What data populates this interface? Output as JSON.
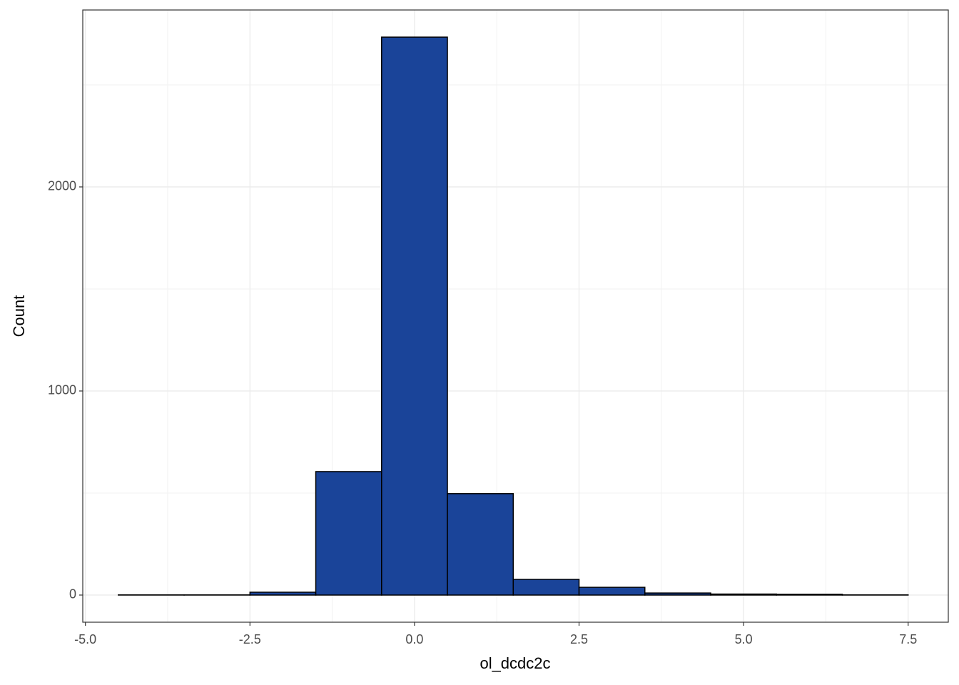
{
  "chart_data": {
    "type": "histogram",
    "x_label": "ol_dcdc2c",
    "y_label": "Count",
    "bins": [
      -4.5,
      -3.5,
      -2.5,
      -1.5,
      -0.5,
      0.5,
      1.5,
      2.5,
      3.5,
      4.5,
      5.5,
      6.5,
      7.5
    ],
    "values": [
      1,
      1,
      14,
      605,
      2734,
      497,
      77,
      38,
      10,
      5,
      4,
      1
    ],
    "color": "#1a4499",
    "edge_color": "#000000",
    "xlim": [
      -5.04,
      8.11
    ],
    "ylim": [
      -133,
      2867
    ],
    "xticks": [
      {
        "value": -5,
        "label": "-5.0"
      },
      {
        "value": -2.5,
        "label": "-2.5"
      },
      {
        "value": 0,
        "label": "0.0"
      },
      {
        "value": 2.5,
        "label": "2.5"
      },
      {
        "value": 5,
        "label": "5.0"
      },
      {
        "value": 7.5,
        "label": "7.5"
      }
    ],
    "yticks": [
      0,
      1000,
      2000
    ],
    "grid": true
  }
}
